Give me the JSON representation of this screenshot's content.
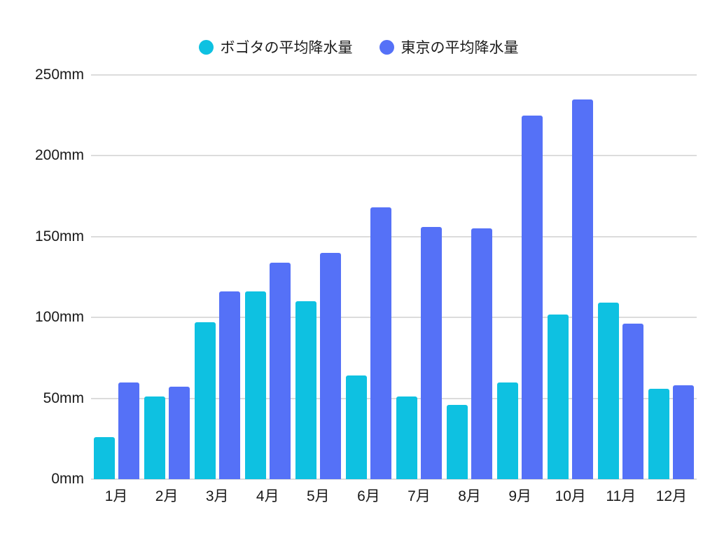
{
  "legend": {
    "items": [
      {
        "label": "ボゴタの平均降水量",
        "color": "#0EC1E1"
      },
      {
        "label": "東京の平均降水量",
        "color": "#5571F7"
      }
    ]
  },
  "axes": {
    "y_tick_labels": [
      "0mm",
      "50mm",
      "100mm",
      "150mm",
      "200mm",
      "250mm"
    ],
    "x_tick_labels": [
      "1月",
      "2月",
      "3月",
      "4月",
      "5月",
      "6月",
      "7月",
      "8月",
      "9月",
      "10月",
      "11月",
      "12月"
    ]
  },
  "chart_data": {
    "type": "bar",
    "title": "",
    "xlabel": "",
    "ylabel": "",
    "unit": "mm",
    "categories": [
      "1月",
      "2月",
      "3月",
      "4月",
      "5月",
      "6月",
      "7月",
      "8月",
      "9月",
      "10月",
      "11月",
      "12月"
    ],
    "series": [
      {
        "name": "ボゴタの平均降水量",
        "color": "#0EC1E1",
        "values": [
          26,
          51,
          97,
          116,
          110,
          64,
          51,
          46,
          60,
          102,
          109,
          56
        ]
      },
      {
        "name": "東京の平均降水量",
        "color": "#5571F7",
        "values": [
          60,
          57,
          116,
          134,
          140,
          168,
          156,
          155,
          225,
          235,
          96,
          58
        ]
      }
    ],
    "ylim": [
      0,
      250
    ],
    "y_ticks": [
      0,
      50,
      100,
      150,
      200,
      250
    ],
    "grid": true,
    "legend_position": "top"
  }
}
